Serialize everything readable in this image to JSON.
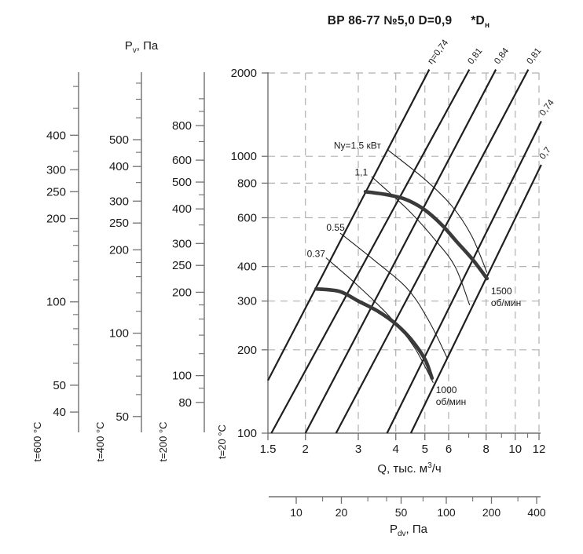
{
  "title": {
    "main": "ВР 86-77 №5,0 D=0,9",
    "note_star": "*",
    "note_base": "D",
    "note_sub": "н"
  },
  "labels": {
    "pv": {
      "base": "P",
      "sub": "v",
      "unit": ", Па"
    },
    "q": {
      "prefix": "Q, тыс. м",
      "sup": "3",
      "suffix": "/ч"
    },
    "pdv": {
      "base": "P",
      "sub": "dv",
      "unit": ", Па"
    }
  },
  "chart_data": {
    "type": "line",
    "title": "ВР 86-77 №5,0 D=0,9 *Dн",
    "x_axis": {
      "label": "Q, тыс. м³/ч",
      "scale": "log",
      "range": [
        1.5,
        12
      ],
      "major_ticks": [
        1.5,
        2,
        3,
        4,
        5,
        6,
        8,
        10,
        12
      ],
      "minor_ticks": [
        7,
        9,
        11
      ]
    },
    "y_axis": {
      "label": "Pv, Па",
      "scale": "log",
      "range": [
        100,
        2000
      ],
      "temp_label": "t=20 °C",
      "major_ticks": [
        2000,
        1000,
        800,
        600,
        400,
        300,
        200,
        100
      ]
    },
    "grid": {
      "style": "dashed",
      "horizontal": [
        2000,
        1000,
        800,
        600,
        400,
        300,
        200
      ],
      "vertical": [
        2,
        3,
        4,
        5,
        6,
        8,
        10,
        12
      ]
    },
    "aux_pressure_axes": [
      {
        "temp_label": "t=600 °C",
        "density_ratio": 0.3356,
        "major_ticks": [
          400,
          300,
          250,
          200,
          100,
          50,
          40
        ],
        "minor_ticks": [
          600,
          500,
          350,
          180,
          160,
          140,
          120,
          90,
          80,
          70,
          60
        ]
      },
      {
        "temp_label": "t=400 °C",
        "density_ratio": 0.4354,
        "major_ticks": [
          500,
          400,
          300,
          250,
          200,
          100,
          50
        ],
        "minor_ticks": [
          800,
          700,
          600,
          450,
          350,
          180,
          160,
          140,
          120,
          90,
          80,
          70,
          60
        ]
      },
      {
        "temp_label": "t=200 °C",
        "density_ratio": 0.6195,
        "major_ticks": [
          800,
          600,
          500,
          400,
          300,
          250,
          200,
          100,
          80
        ],
        "minor_ticks": [
          1000,
          900,
          700,
          450,
          350,
          180,
          160,
          140,
          120,
          90
        ]
      }
    ],
    "pdv_axis": {
      "label": "Pdv, Па",
      "scale": "log",
      "major_ticks": [
        10,
        20,
        50,
        100,
        200,
        400
      ],
      "minor_ticks": [
        15,
        30,
        40,
        70,
        150,
        300
      ]
    },
    "efficiency_lines": [
      {
        "label": "η=0,74",
        "eta": 0.74,
        "points": [
          [
            1.5,
            155
          ],
          [
            5.1,
            2000
          ]
        ]
      },
      {
        "label": "0,81",
        "eta": 0.81,
        "points": [
          [
            1.54,
            100
          ],
          [
            6.93,
            2000
          ]
        ]
      },
      {
        "label": "0,84",
        "eta": 0.84,
        "points": [
          [
            2.0,
            100
          ],
          [
            8.5,
            2000
          ]
        ]
      },
      {
        "label": "0,81",
        "eta": 0.81,
        "points": [
          [
            2.53,
            100
          ],
          [
            10.9,
            2000
          ]
        ]
      },
      {
        "label": "0,74",
        "eta": 0.74,
        "points": [
          [
            3.74,
            100
          ],
          [
            12.05,
            1300
          ]
        ]
      },
      {
        "label": "0,7",
        "eta": 0.7,
        "points": [
          [
            4.49,
            100
          ],
          [
            12.05,
            905
          ]
        ]
      }
    ],
    "power_curves": [
      {
        "label": "Nу=1.5 кВт",
        "kw": 1.5,
        "label_at": [
          2.98,
          1095
        ],
        "points": [
          [
            3.74,
            1060
          ],
          [
            4.97,
            830
          ],
          [
            6.14,
            663
          ],
          [
            7.15,
            517
          ],
          [
            8.05,
            380
          ]
        ]
      },
      {
        "label": "1,1",
        "kw": 1.1,
        "label_at": [
          3.07,
          875
        ],
        "points": [
          [
            3.32,
            845
          ],
          [
            4.4,
            640
          ],
          [
            5.4,
            500
          ],
          [
            6.3,
            400
          ],
          [
            7.05,
            290
          ]
        ]
      },
      {
        "label": "0.55",
        "kw": 0.55,
        "label_at": [
          2.52,
          553
        ],
        "points": [
          [
            2.61,
            528
          ],
          [
            3.4,
            420
          ],
          [
            4.4,
            330
          ],
          [
            5.2,
            250
          ],
          [
            5.93,
            187
          ]
        ]
      },
      {
        "label": "0.37",
        "kw": 0.37,
        "label_at": [
          2.17,
          445
        ],
        "points": [
          [
            2.34,
            430
          ],
          [
            3.0,
            340
          ],
          [
            3.8,
            265
          ],
          [
            4.6,
            205
          ],
          [
            5.33,
            152
          ]
        ]
      }
    ],
    "speed_curves": [
      {
        "rpm": 1500,
        "label_lines": [
          "1500",
          "об/мин"
        ],
        "label_at": [
          8.3,
          330
        ],
        "points": [
          [
            3.17,
            745
          ],
          [
            3.7,
            728
          ],
          [
            4.3,
            700
          ],
          [
            5.0,
            640
          ],
          [
            5.7,
            565
          ],
          [
            6.4,
            490
          ],
          [
            7.2,
            425
          ],
          [
            8.05,
            362
          ]
        ]
      },
      {
        "rpm": 1000,
        "label_lines": [
          "1000",
          "об/мин"
        ],
        "label_at": [
          5.44,
          145
        ],
        "points": [
          [
            2.17,
            332
          ],
          [
            2.6,
            325
          ],
          [
            3.0,
            300
          ],
          [
            3.5,
            275
          ],
          [
            4.0,
            248
          ],
          [
            4.5,
            218
          ],
          [
            5.0,
            185
          ],
          [
            5.28,
            158
          ]
        ]
      }
    ],
    "colors": {
      "curve": "#1f1f1f",
      "thick_curve": "#3a3a3a",
      "axis": "#707070",
      "grid": "#b0b0b0",
      "text": "#1a1a1a"
    }
  }
}
